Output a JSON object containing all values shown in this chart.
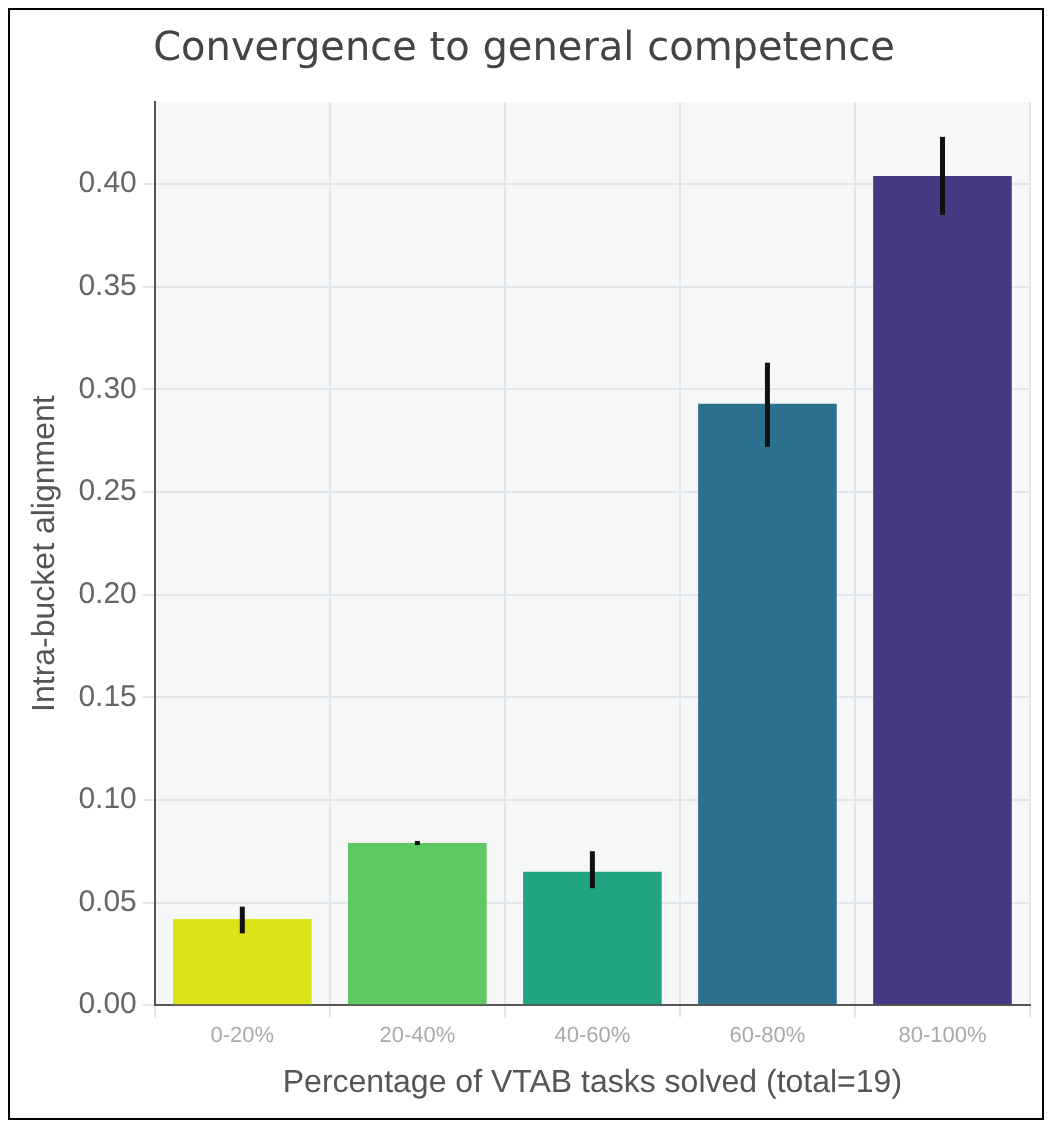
{
  "chart_data": {
    "type": "bar",
    "title": "Convergence to general competence",
    "xlabel": "Percentage of VTAB tasks solved (total=19)",
    "ylabel": "Intra-bucket alignment",
    "categories": [
      "0-20%",
      "20-40%",
      "40-60%",
      "60-80%",
      "80-100%"
    ],
    "values": [
      0.042,
      0.079,
      0.065,
      0.293,
      0.404
    ],
    "colors": [
      "#dce319",
      "#5ec962",
      "#21a585",
      "#2c728e",
      "#443a83"
    ],
    "errors": [
      [
        0.035,
        0.048
      ],
      [
        0.078,
        0.08
      ],
      [
        0.057,
        0.075
      ],
      [
        0.272,
        0.313
      ],
      [
        0.385,
        0.423
      ]
    ],
    "ylim": [
      0,
      0.44
    ],
    "yticks": [
      {
        "value": 0,
        "label": "0.00"
      },
      {
        "value": 0.05,
        "label": "0.05"
      },
      {
        "value": 0.1,
        "label": "0.10"
      },
      {
        "value": 0.15,
        "label": "0.15"
      },
      {
        "value": 0.2,
        "label": "0.20"
      },
      {
        "value": 0.25,
        "label": "0.25"
      },
      {
        "value": 0.3,
        "label": "0.30"
      },
      {
        "value": 0.35,
        "label": "0.35"
      },
      {
        "value": 0.4,
        "label": "0.40"
      }
    ],
    "grid": true
  }
}
